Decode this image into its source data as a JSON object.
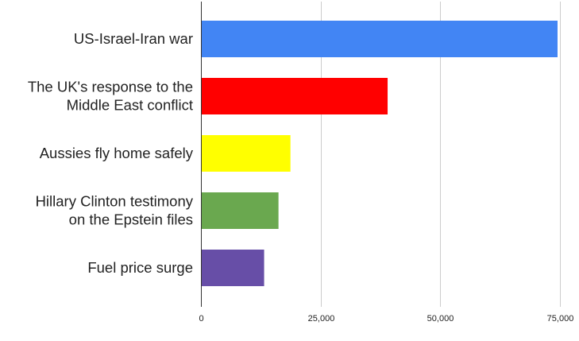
{
  "chart_data": {
    "type": "bar",
    "orientation": "horizontal",
    "title": "",
    "xlabel": "",
    "ylabel": "",
    "categories": [
      [
        "US-Israel-Iran war"
      ],
      [
        "The UK's response to the",
        "Middle East conflict"
      ],
      [
        "Aussies fly home safely"
      ],
      [
        "Hillary Clinton testimony",
        "on the Epstein files"
      ],
      [
        "Fuel price surge"
      ]
    ],
    "values": [
      74500,
      39000,
      18700,
      16200,
      13200
    ],
    "colors": [
      "#4285f4",
      "#ff0000",
      "#ffff00",
      "#6aa84f",
      "#674ea7"
    ],
    "xlim": [
      0,
      75000
    ],
    "x_ticks": [
      0,
      25000,
      50000,
      75000
    ],
    "x_tick_labels": [
      "0",
      "25,000",
      "50,000",
      "75,000"
    ],
    "grid": "vertical",
    "legend": "none"
  }
}
